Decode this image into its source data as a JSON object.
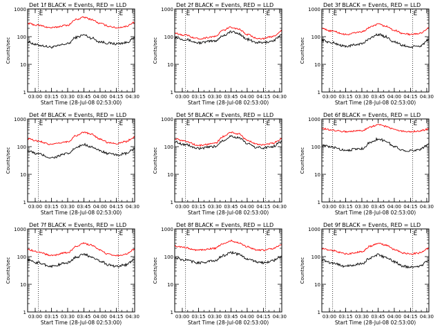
{
  "figure": {
    "xlabel": "Start Time (28-Jul-08 02:53:00)",
    "ylabel": "Counts/sec",
    "x_ticks": [
      "03:00",
      "03:15",
      "03:30",
      "03:45",
      "04:00",
      "04:15",
      "04:30"
    ],
    "y_ticks": [
      "1",
      "10",
      "100",
      "1000"
    ],
    "marker_label": "E",
    "colors": {
      "events": "#000000",
      "lld": "#ff0000",
      "axes": "#000000",
      "background": "#ffffff"
    }
  },
  "chart_data": [
    {
      "type": "line",
      "title": "Det 1f BLACK = Events, RED = LLD",
      "xlabel": "Start Time (28-Jul-08 02:53:00)",
      "ylabel": "Counts/sec",
      "x": [
        "02:53",
        "03:02",
        "03:15",
        "03:30",
        "03:38",
        "03:45",
        "03:52",
        "04:00",
        "04:08",
        "04:15",
        "04:23",
        "04:32"
      ],
      "xlim": [
        "02:53",
        "04:32"
      ],
      "ylim": [
        1,
        1000
      ],
      "ylog": true,
      "vlines": [
        "03:03",
        "04:17"
      ],
      "series": [
        {
          "values": [
            65,
            50,
            42,
            55,
            95,
            115,
            90,
            65,
            58,
            55,
            60,
            85
          ]
        },
        {
          "values": [
            300,
            260,
            210,
            260,
            420,
            500,
            420,
            300,
            240,
            210,
            230,
            330
          ]
        }
      ]
    },
    {
      "type": "line",
      "title": "Det 2f BLACK = Events, RED = LLD",
      "xlabel": "Start Time (28-Jul-08 02:53:00)",
      "ylabel": "Counts/sec",
      "x": [
        "02:53",
        "03:02",
        "03:15",
        "03:30",
        "03:38",
        "03:45",
        "03:52",
        "04:00",
        "04:08",
        "04:15",
        "04:23",
        "04:32"
      ],
      "xlim": [
        "02:53",
        "04:32"
      ],
      "ylim": [
        1,
        1000
      ],
      "ylog": true,
      "vlines": [
        "03:03",
        "04:17"
      ],
      "series": [
        {
          "values": [
            95,
            80,
            60,
            70,
            110,
            150,
            130,
            80,
            62,
            60,
            70,
            110
          ]
        },
        {
          "values": [
            130,
            115,
            85,
            100,
            170,
            220,
            190,
            120,
            90,
            85,
            100,
            160
          ]
        }
      ]
    },
    {
      "type": "line",
      "title": "Det 3f BLACK = Events, RED = LLD",
      "xlabel": "Start Time (28-Jul-08 02:53:00)",
      "ylabel": "Counts/sec",
      "x": [
        "02:53",
        "03:02",
        "03:15",
        "03:30",
        "03:38",
        "03:45",
        "03:52",
        "04:00",
        "04:08",
        "04:15",
        "04:23",
        "04:32"
      ],
      "xlim": [
        "02:53",
        "04:32"
      ],
      "ylim": [
        1,
        1000
      ],
      "ylog": true,
      "vlines": [
        "03:03",
        "04:17"
      ],
      "series": [
        {
          "values": [
            75,
            60,
            45,
            55,
            90,
            120,
            100,
            65,
            48,
            42,
            45,
            75
          ]
        },
        {
          "values": [
            190,
            160,
            120,
            150,
            220,
            280,
            240,
            170,
            130,
            120,
            130,
            200
          ]
        }
      ]
    },
    {
      "type": "line",
      "title": "Det 4f BLACK = Events, RED = LLD",
      "xlabel": "Start Time (28-Jul-08 02:53:00)",
      "ylabel": "Counts/sec",
      "x": [
        "02:53",
        "03:02",
        "03:15",
        "03:30",
        "03:38",
        "03:45",
        "03:52",
        "04:00",
        "04:08",
        "04:15",
        "04:23",
        "04:32"
      ],
      "xlim": [
        "02:53",
        "04:32"
      ],
      "ylim": [
        1,
        1000
      ],
      "ylog": true,
      "vlines": [
        "03:03",
        "04:17"
      ],
      "series": [
        {
          "values": [
            70,
            55,
            40,
            55,
            90,
            120,
            100,
            70,
            55,
            50,
            55,
            80
          ]
        },
        {
          "values": [
            190,
            160,
            120,
            150,
            250,
            330,
            280,
            190,
            140,
            130,
            150,
            220
          ]
        }
      ]
    },
    {
      "type": "line",
      "title": "Det 5f BLACK = Events, RED = LLD",
      "xlabel": "Start Time (28-Jul-08 02:53:00)",
      "ylabel": "Counts/sec",
      "x": [
        "02:53",
        "03:02",
        "03:15",
        "03:30",
        "03:38",
        "03:45",
        "03:52",
        "04:00",
        "04:08",
        "04:15",
        "04:23",
        "04:32"
      ],
      "xlim": [
        "02:53",
        "04:32"
      ],
      "ylim": [
        1,
        1000
      ],
      "ylog": true,
      "vlines": [
        "03:03",
        "04:17"
      ],
      "series": [
        {
          "values": [
            150,
            120,
            85,
            100,
            170,
            240,
            210,
            130,
            95,
            90,
            100,
            150
          ]
        },
        {
          "values": [
            190,
            160,
            110,
            130,
            230,
            330,
            290,
            170,
            125,
            115,
            130,
            190
          ]
        }
      ]
    },
    {
      "type": "line",
      "title": "Det 6f BLACK = Events, RED = LLD",
      "xlabel": "Start Time (28-Jul-08 02:53:00)",
      "ylabel": "Counts/sec",
      "x": [
        "02:53",
        "03:02",
        "03:15",
        "03:30",
        "03:38",
        "03:45",
        "03:52",
        "04:00",
        "04:08",
        "04:15",
        "04:23",
        "04:32"
      ],
      "xlim": [
        "02:53",
        "04:32"
      ],
      "ylim": [
        1,
        1000
      ],
      "ylog": true,
      "vlines": [
        "03:03",
        "04:17"
      ],
      "series": [
        {
          "values": [
            110,
            95,
            75,
            85,
            140,
            190,
            160,
            100,
            75,
            70,
            80,
            120
          ]
        },
        {
          "values": [
            450,
            400,
            350,
            380,
            520,
            620,
            550,
            420,
            360,
            350,
            370,
            430
          ]
        }
      ]
    },
    {
      "type": "line",
      "title": "Det 7f BLACK = Events, RED = LLD",
      "xlabel": "Start Time (28-Jul-08 02:53:00)",
      "ylabel": "Counts/sec",
      "x": [
        "02:53",
        "03:02",
        "03:15",
        "03:30",
        "03:38",
        "03:45",
        "03:52",
        "04:00",
        "04:08",
        "04:15",
        "04:23",
        "04:32"
      ],
      "xlim": [
        "02:53",
        "04:32"
      ],
      "ylim": [
        1,
        1000
      ],
      "ylog": true,
      "vlines": [
        "03:03",
        "04:17"
      ],
      "series": [
        {
          "values": [
            75,
            60,
            45,
            60,
            95,
            120,
            100,
            70,
            50,
            45,
            50,
            75
          ]
        },
        {
          "values": [
            180,
            150,
            110,
            140,
            230,
            300,
            260,
            170,
            120,
            110,
            120,
            180
          ]
        }
      ]
    },
    {
      "type": "line",
      "title": "Det 8f BLACK = Events, RED = LLD",
      "xlabel": "Start Time (28-Jul-08 02:53:00)",
      "ylabel": "Counts/sec",
      "x": [
        "02:53",
        "03:02",
        "03:15",
        "03:30",
        "03:38",
        "03:45",
        "03:52",
        "04:00",
        "04:08",
        "04:15",
        "04:23",
        "04:32"
      ],
      "xlim": [
        "02:53",
        "04:32"
      ],
      "ylim": [
        1,
        1000
      ],
      "ylog": true,
      "vlines": [
        "03:03",
        "04:17"
      ],
      "series": [
        {
          "values": [
            90,
            75,
            60,
            70,
            110,
            140,
            120,
            85,
            65,
            60,
            70,
            100
          ]
        },
        {
          "values": [
            240,
            210,
            170,
            200,
            290,
            370,
            320,
            230,
            180,
            170,
            190,
            260
          ]
        }
      ]
    },
    {
      "type": "line",
      "title": "Det 9f BLACK = Events, RED = LLD",
      "xlabel": "Start Time (28-Jul-08 02:53:00)",
      "ylabel": "Counts/sec",
      "x": [
        "02:53",
        "03:02",
        "03:15",
        "03:30",
        "03:38",
        "03:45",
        "03:52",
        "04:00",
        "04:08",
        "04:15",
        "04:23",
        "04:32"
      ],
      "xlim": [
        "02:53",
        "04:32"
      ],
      "ylim": [
        1,
        1000
      ],
      "ylog": true,
      "vlines": [
        "03:03",
        "04:17"
      ],
      "series": [
        {
          "values": [
            75,
            60,
            45,
            55,
            90,
            115,
            95,
            65,
            45,
            42,
            45,
            70
          ]
        },
        {
          "values": [
            200,
            170,
            125,
            150,
            240,
            300,
            260,
            180,
            135,
            125,
            135,
            200
          ]
        }
      ]
    }
  ]
}
